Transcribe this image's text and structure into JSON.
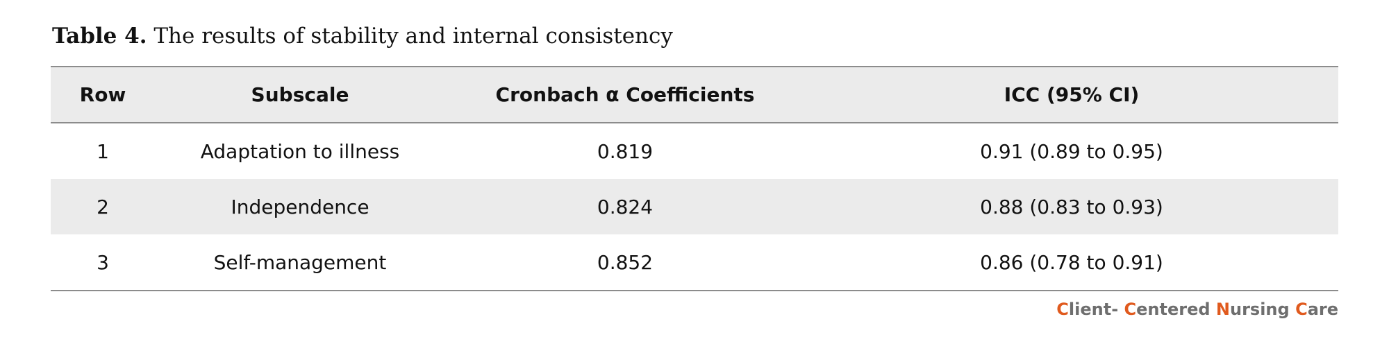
{
  "caption": {
    "label": "Table 4.",
    "text": " The results of stability and internal consistency"
  },
  "table": {
    "headers": [
      "Row",
      "Subscale",
      "Cronbach α Coefficients",
      "ICC (95% CI)"
    ],
    "rows": [
      [
        "1",
        "Adaptation to illness",
        "0.819",
        "0.91 (0.89 to 0.95)"
      ],
      [
        "2",
        "Independence",
        "0.824",
        "0.88 (0.83 to 0.93)"
      ],
      [
        "3",
        "Self-management",
        "0.852",
        "0.86 (0.78 to 0.91)"
      ]
    ]
  },
  "brand": {
    "parts": [
      {
        "text": "C",
        "accent": true
      },
      {
        "text": "lient- ",
        "accent": false
      },
      {
        "text": "C",
        "accent": true
      },
      {
        "text": "entered ",
        "accent": false
      },
      {
        "text": "N",
        "accent": true
      },
      {
        "text": "ursing ",
        "accent": false
      },
      {
        "text": "C",
        "accent": true
      },
      {
        "text": "are",
        "accent": false
      }
    ],
    "accent_color": "#e05a1e",
    "text_color": "#6e6e6e"
  }
}
